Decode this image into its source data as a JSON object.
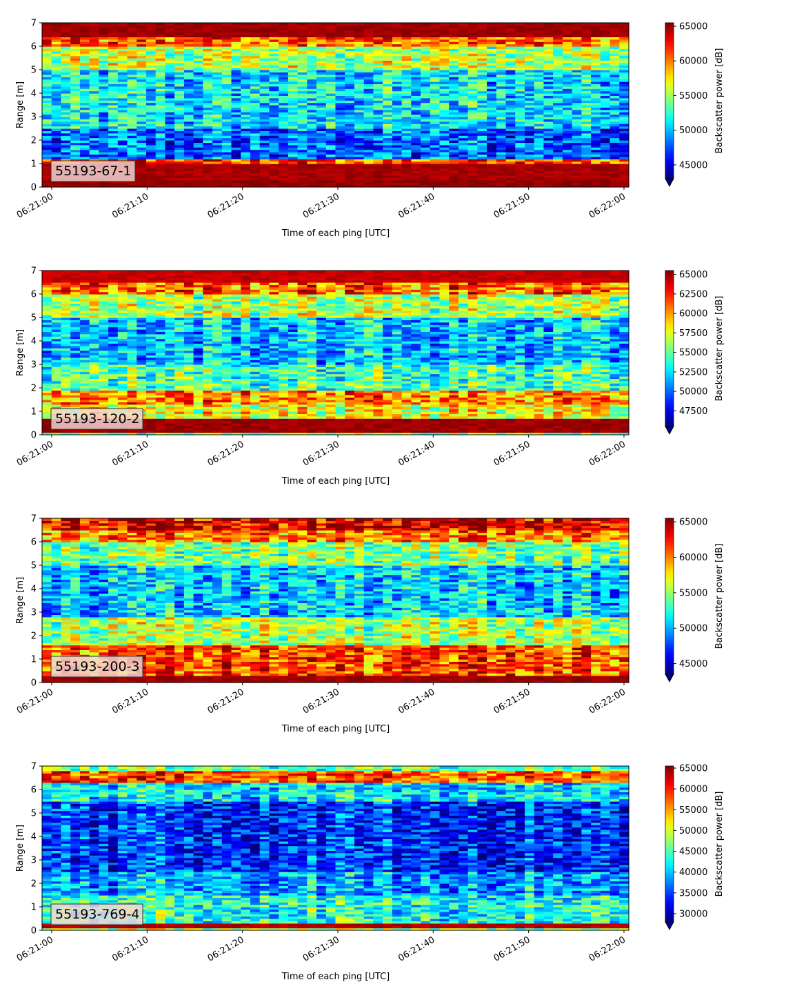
{
  "chart_data": [
    {
      "type": "heatmap",
      "label": "55193-67-1",
      "xlabel": "Time of each ping [UTC]",
      "ylabel": "Range [m]",
      "xticks": [
        "06:21:00",
        "06:21:10",
        "06:21:20",
        "06:21:30",
        "06:21:40",
        "06:21:50",
        "06:22:00"
      ],
      "yticks": [
        "0",
        "1",
        "2",
        "3",
        "4",
        "5",
        "6",
        "7"
      ],
      "ylim": [
        0,
        7
      ],
      "xlim": [
        "06:21:00",
        "06:22:00"
      ],
      "colorbar": {
        "label": "Backscatter power [dB]",
        "ticks": [
          "45000",
          "50000",
          "55000",
          "60000",
          "65000"
        ],
        "vmin": 43000,
        "vmax": 65500,
        "extend": "min",
        "cmap": "jet"
      },
      "profile": {
        "bands": [
          {
            "range": [
              0,
              0.3
            ],
            "level": 0.98
          },
          {
            "range": [
              0.3,
              1.0
            ],
            "level": 0.96
          },
          {
            "range": [
              1.0,
              1.25
            ],
            "level": 0.82
          },
          {
            "range": [
              1.25,
              2.5
            ],
            "level": 0.22
          },
          {
            "range": [
              2.5,
              5.0
            ],
            "level": 0.35
          },
          {
            "range": [
              5.0,
              6.0
            ],
            "level": 0.55
          },
          {
            "range": [
              6.0,
              6.4
            ],
            "level": 0.78
          },
          {
            "range": [
              6.4,
              7.0
            ],
            "level": 0.97
          }
        ]
      }
    },
    {
      "type": "heatmap",
      "label": "55193-120-2",
      "xlabel": "Time of each ping [UTC]",
      "ylabel": "Range [m]",
      "xticks": [
        "06:21:00",
        "06:21:10",
        "06:21:20",
        "06:21:30",
        "06:21:40",
        "06:21:50",
        "06:22:00"
      ],
      "yticks": [
        "0",
        "1",
        "2",
        "3",
        "4",
        "5",
        "6",
        "7"
      ],
      "ylim": [
        0,
        7
      ],
      "xlim": [
        "06:21:00",
        "06:22:00"
      ],
      "colorbar": {
        "label": "Backscatter power [dB]",
        "ticks": [
          "47500",
          "50000",
          "52500",
          "55000",
          "57500",
          "60000",
          "62500",
          "65000"
        ],
        "vmin": 45500,
        "vmax": 65500,
        "extend": "min",
        "cmap": "jet"
      },
      "profile": {
        "bands": [
          {
            "range": [
              0,
              0.1
            ],
            "level": 0.5
          },
          {
            "range": [
              0.1,
              0.7
            ],
            "level": 0.97
          },
          {
            "range": [
              0.7,
              1.3
            ],
            "level": 0.62
          },
          {
            "range": [
              1.3,
              1.9
            ],
            "level": 0.75
          },
          {
            "range": [
              1.9,
              3.0
            ],
            "level": 0.45
          },
          {
            "range": [
              3.0,
              5.0
            ],
            "level": 0.32
          },
          {
            "range": [
              5.0,
              6.0
            ],
            "level": 0.55
          },
          {
            "range": [
              6.0,
              6.5
            ],
            "level": 0.78
          },
          {
            "range": [
              6.5,
              7.0
            ],
            "level": 0.93
          }
        ]
      }
    },
    {
      "type": "heatmap",
      "label": "55193-200-3",
      "xlabel": "Time of each ping [UTC]",
      "ylabel": "Range [m]",
      "xticks": [
        "06:21:00",
        "06:21:10",
        "06:21:20",
        "06:21:30",
        "06:21:40",
        "06:21:50",
        "06:22:00"
      ],
      "yticks": [
        "0",
        "1",
        "2",
        "3",
        "4",
        "5",
        "6",
        "7"
      ],
      "ylim": [
        0,
        7
      ],
      "xlim": [
        "06:21:00",
        "06:22:00"
      ],
      "colorbar": {
        "label": "Backscatter power [dB]",
        "ticks": [
          "45000",
          "50000",
          "55000",
          "60000",
          "65000"
        ],
        "vmin": 43500,
        "vmax": 65500,
        "extend": "min",
        "cmap": "jet"
      },
      "profile": {
        "bands": [
          {
            "range": [
              0,
              0.35
            ],
            "level": 0.97
          },
          {
            "range": [
              0.35,
              1.6
            ],
            "level": 0.8
          },
          {
            "range": [
              1.6,
              2.8
            ],
            "level": 0.55
          },
          {
            "range": [
              2.8,
              5.0
            ],
            "level": 0.33
          },
          {
            "range": [
              5.0,
              6.0
            ],
            "level": 0.5
          },
          {
            "range": [
              6.0,
              6.5
            ],
            "level": 0.75
          },
          {
            "range": [
              6.5,
              7.0
            ],
            "level": 0.9
          }
        ]
      }
    },
    {
      "type": "heatmap",
      "label": "55193-769-4",
      "xlabel": "Time of each ping [UTC]",
      "ylabel": "Range [m]",
      "xticks": [
        "06:21:00",
        "06:21:10",
        "06:21:20",
        "06:21:30",
        "06:21:40",
        "06:21:50",
        "06:22:00"
      ],
      "yticks": [
        "0",
        "1",
        "2",
        "3",
        "4",
        "5",
        "6",
        "7"
      ],
      "ylim": [
        0,
        7
      ],
      "xlim": [
        "06:21:00",
        "06:22:00"
      ],
      "colorbar": {
        "label": "Backscatter power [dB]",
        "ticks": [
          "30000",
          "35000",
          "40000",
          "45000",
          "50000",
          "55000",
          "60000",
          "65000"
        ],
        "vmin": 28000,
        "vmax": 65500,
        "extend": "min",
        "cmap": "jet"
      },
      "profile": {
        "bands": [
          {
            "range": [
              0,
              0.1
            ],
            "level": 0.55
          },
          {
            "range": [
              0.1,
              0.3
            ],
            "level": 0.95
          },
          {
            "range": [
              0.3,
              1.5
            ],
            "level": 0.42
          },
          {
            "range": [
              1.5,
              2.5
            ],
            "level": 0.3
          },
          {
            "range": [
              2.5,
              5.5
            ],
            "level": 0.18
          },
          {
            "range": [
              5.5,
              6.3
            ],
            "level": 0.38
          },
          {
            "range": [
              6.3,
              6.8
            ],
            "level": 0.82
          },
          {
            "range": [
              6.8,
              7.0
            ],
            "level": 0.5
          }
        ]
      }
    }
  ]
}
